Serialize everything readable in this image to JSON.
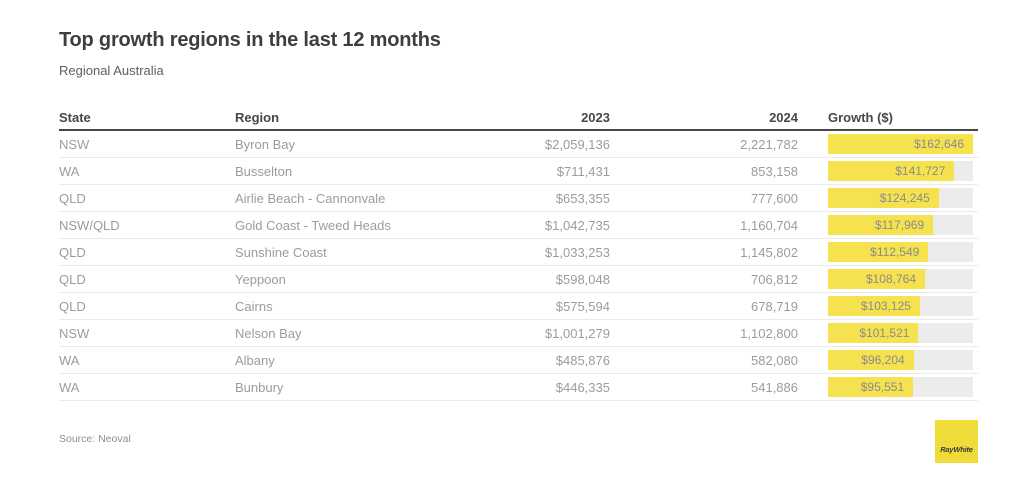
{
  "page": {
    "title": "Top growth regions in the last 12 months",
    "subtitle": "Regional Australia",
    "source": "Source: Neoval",
    "logo_text": "RayWhite"
  },
  "colors": {
    "bar_yellow": "#f5e24e",
    "bar_track": "#ececec",
    "logo_yellow": "#f0dc38",
    "header_text": "#474747",
    "row_text": "#9c9c9c"
  },
  "table": {
    "columns": [
      "State",
      "Region",
      "2023",
      "2024",
      "Growth ($)"
    ],
    "max_growth": 162646,
    "rows": [
      {
        "state": "NSW",
        "region": "Byron Bay",
        "y2023": "$2,059,136",
        "y2024": "2,221,782",
        "growth_label": "$162,646",
        "growth_value": 162646
      },
      {
        "state": "WA",
        "region": "Busselton",
        "y2023": "$711,431",
        "y2024": "853,158",
        "growth_label": "$141,727",
        "growth_value": 141727
      },
      {
        "state": "QLD",
        "region": "Airlie Beach - Cannonvale",
        "y2023": "$653,355",
        "y2024": "777,600",
        "growth_label": "$124,245",
        "growth_value": 124245
      },
      {
        "state": "NSW/QLD",
        "region": "Gold Coast - Tweed Heads",
        "y2023": "$1,042,735",
        "y2024": "1,160,704",
        "growth_label": "$117,969",
        "growth_value": 117969
      },
      {
        "state": "QLD",
        "region": "Sunshine Coast",
        "y2023": "$1,033,253",
        "y2024": "1,145,802",
        "growth_label": "$112,549",
        "growth_value": 112549
      },
      {
        "state": "QLD",
        "region": "Yeppoon",
        "y2023": "$598,048",
        "y2024": "706,812",
        "growth_label": "$108,764",
        "growth_value": 108764
      },
      {
        "state": "QLD",
        "region": "Cairns",
        "y2023": "$575,594",
        "y2024": "678,719",
        "growth_label": "$103,125",
        "growth_value": 103125
      },
      {
        "state": "NSW",
        "region": "Nelson Bay",
        "y2023": "$1,001,279",
        "y2024": "1,102,800",
        "growth_label": "$101,521",
        "growth_value": 101521
      },
      {
        "state": "WA",
        "region": "Albany",
        "y2023": "$485,876",
        "y2024": "582,080",
        "growth_label": "$96,204",
        "growth_value": 96204
      },
      {
        "state": "WA",
        "region": "Bunbury",
        "y2023": "$446,335",
        "y2024": "541,886",
        "growth_label": "$95,551",
        "growth_value": 95551
      }
    ]
  },
  "chart_data": {
    "type": "table",
    "title": "Top growth regions in the last 12 months",
    "subtitle": "Regional Australia",
    "columns": [
      "State",
      "Region",
      "2023",
      "2024",
      "Growth ($)"
    ],
    "rows": [
      [
        "NSW",
        "Byron Bay",
        2059136,
        2221782,
        162646
      ],
      [
        "WA",
        "Busselton",
        711431,
        853158,
        141727
      ],
      [
        "QLD",
        "Airlie Beach - Cannonvale",
        653355,
        777600,
        124245
      ],
      [
        "NSW/QLD",
        "Gold Coast - Tweed Heads",
        1042735,
        1160704,
        117969
      ],
      [
        "QLD",
        "Sunshine Coast",
        1033253,
        1145802,
        112549
      ],
      [
        "QLD",
        "Yeppoon",
        598048,
        706812,
        108764
      ],
      [
        "QLD",
        "Cairns",
        575594,
        678719,
        103125
      ],
      [
        "NSW",
        "Nelson Bay",
        1001279,
        1102800,
        101521
      ],
      [
        "WA",
        "Albany",
        485876,
        582080,
        96204
      ],
      [
        "WA",
        "Bunbury",
        446335,
        541886,
        95551
      ]
    ],
    "growth_bar": {
      "type": "bar",
      "orientation": "horizontal",
      "value_column": "Growth ($)",
      "range": [
        0,
        162646
      ],
      "color": "#f5e24e",
      "track_color": "#ececec"
    },
    "source": "Source: Neoval"
  }
}
